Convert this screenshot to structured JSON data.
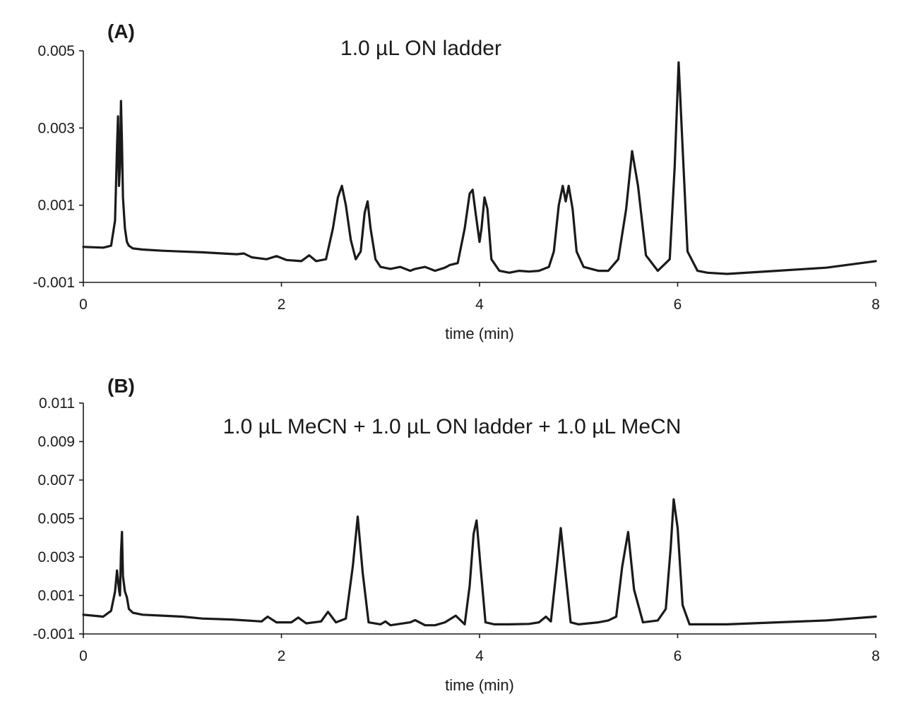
{
  "chart_data": [
    {
      "type": "line",
      "panel_label": "(A)",
      "title": "1.0 µL ON ladder",
      "xlabel": "time (min)",
      "ylabel": "",
      "xlim": [
        0,
        8
      ],
      "ylim": [
        -0.001,
        0.005
      ],
      "xticks": [
        0,
        2,
        4,
        6,
        8
      ],
      "yticks": [
        -0.001,
        0.001,
        0.003,
        0.005
      ],
      "xtick_labels": [
        "0",
        "2",
        "4",
        "6",
        "8"
      ],
      "ytick_labels": [
        "-0.001",
        "0.001",
        "0.003",
        "0.005"
      ],
      "grid": false,
      "legend": "none",
      "color": "#1a1a1a",
      "series": [
        {
          "x": [
            0,
            0.2,
            0.28,
            0.32,
            0.34,
            0.35,
            0.36,
            0.37,
            0.38,
            0.39,
            0.4,
            0.42,
            0.44,
            0.46,
            0.5,
            0.6,
            0.8,
            1.0,
            1.2,
            1.4,
            1.55,
            1.62,
            1.7,
            1.85,
            1.95,
            2.05,
            2.2,
            2.28,
            2.35,
            2.45,
            2.52,
            2.57,
            2.61,
            2.65,
            2.7,
            2.75,
            2.8,
            2.84,
            2.87,
            2.9,
            2.95,
            3.0,
            3.1,
            3.2,
            3.3,
            3.35,
            3.45,
            3.55,
            3.65,
            3.7,
            3.78,
            3.85,
            3.9,
            3.93,
            3.96,
            4.0,
            4.02,
            4.05,
            4.08,
            4.12,
            4.2,
            4.3,
            4.4,
            4.5,
            4.6,
            4.7,
            4.75,
            4.8,
            4.84,
            4.87,
            4.9,
            4.94,
            4.98,
            5.05,
            5.2,
            5.3,
            5.4,
            5.48,
            5.54,
            5.6,
            5.68,
            5.8,
            5.92,
            5.97,
            6.01,
            6.05,
            6.1,
            6.2,
            6.3,
            6.5,
            7.0,
            7.5,
            8.0
          ],
          "y": [
            -8e-05,
            -0.0001,
            -5e-05,
            0.0006,
            0.0025,
            0.0033,
            0.0015,
            0.002,
            0.0037,
            0.0026,
            0.0012,
            0.0004,
            5e-05,
            -5e-05,
            -0.00012,
            -0.00015,
            -0.00018,
            -0.0002,
            -0.00022,
            -0.00025,
            -0.00027,
            -0.00025,
            -0.00035,
            -0.0004,
            -0.00032,
            -0.00042,
            -0.00045,
            -0.0003,
            -0.00045,
            -0.0004,
            0.0004,
            0.0012,
            0.0015,
            0.001,
            0.0001,
            -0.0004,
            -0.0002,
            0.0008,
            0.0011,
            0.0004,
            -0.0004,
            -0.0006,
            -0.00065,
            -0.0006,
            -0.0007,
            -0.00065,
            -0.0006,
            -0.0007,
            -0.00062,
            -0.00055,
            -0.0005,
            0.0004,
            0.0013,
            0.0014,
            0.0008,
            5e-05,
            0.0004,
            0.0012,
            0.0009,
            -0.0004,
            -0.0007,
            -0.00075,
            -0.0007,
            -0.00072,
            -0.0007,
            -0.0006,
            -0.0002,
            0.001,
            0.0015,
            0.0011,
            0.0015,
            0.0009,
            -0.0002,
            -0.0006,
            -0.0007,
            -0.0007,
            -0.0004,
            0.0009,
            0.0024,
            0.0015,
            -0.0003,
            -0.0007,
            -0.0004,
            0.002,
            0.0047,
            0.0025,
            -0.0002,
            -0.0007,
            -0.00075,
            -0.00078,
            -0.0007,
            -0.00062,
            -0.00045
          ]
        }
      ]
    },
    {
      "type": "line",
      "panel_label": "(B)",
      "title": "1.0 µL MeCN + 1.0 µL ON ladder + 1.0 µL MeCN",
      "xlabel": "time (min)",
      "ylabel": "",
      "xlim": [
        0,
        8
      ],
      "ylim": [
        -0.001,
        0.011
      ],
      "xticks": [
        0,
        2,
        4,
        6,
        8
      ],
      "yticks": [
        -0.001,
        0.001,
        0.003,
        0.005,
        0.007,
        0.009,
        0.011
      ],
      "xtick_labels": [
        "0",
        "2",
        "4",
        "6",
        "8"
      ],
      "ytick_labels": [
        "-0.001",
        "0.001",
        "0.003",
        "0.005",
        "0.007",
        "0.009",
        "0.011"
      ],
      "grid": false,
      "legend": "none",
      "color": "#1a1a1a",
      "series": [
        {
          "x": [
            0,
            0.2,
            0.28,
            0.32,
            0.34,
            0.36,
            0.37,
            0.38,
            0.39,
            0.4,
            0.42,
            0.44,
            0.46,
            0.5,
            0.6,
            0.8,
            1.0,
            1.2,
            1.5,
            1.8,
            1.86,
            1.95,
            2.1,
            2.17,
            2.25,
            2.4,
            2.47,
            2.55,
            2.65,
            2.72,
            2.77,
            2.82,
            2.88,
            3.0,
            3.05,
            3.1,
            3.3,
            3.35,
            3.45,
            3.55,
            3.65,
            3.76,
            3.85,
            3.9,
            3.94,
            3.97,
            4.01,
            4.06,
            4.15,
            4.3,
            4.5,
            4.6,
            4.67,
            4.72,
            4.78,
            4.82,
            4.86,
            4.92,
            5.0,
            5.2,
            5.3,
            5.38,
            5.44,
            5.5,
            5.56,
            5.65,
            5.8,
            5.88,
            5.93,
            5.96,
            6.0,
            6.05,
            6.12,
            6.3,
            6.5,
            7.0,
            7.5,
            8.0
          ],
          "y": [
            0.0,
            -0.0001,
            0.0002,
            0.0012,
            0.0023,
            0.0013,
            0.001,
            0.0032,
            0.0043,
            0.002,
            0.0012,
            0.0009,
            0.0003,
            0.0001,
            0.0,
            -5e-05,
            -0.0001,
            -0.0002,
            -0.00025,
            -0.00035,
            -0.0001,
            -0.0004,
            -0.0004,
            -0.00015,
            -0.00045,
            -0.00035,
            0.00015,
            -0.0004,
            -0.0002,
            0.0025,
            0.0051,
            0.0022,
            -0.0004,
            -0.0005,
            -0.00035,
            -0.00055,
            -0.0004,
            -0.00028,
            -0.00055,
            -0.00055,
            -0.0004,
            -5e-05,
            -0.0005,
            0.0015,
            0.0042,
            0.0049,
            0.0025,
            -0.0004,
            -0.0005,
            -0.0005,
            -0.00048,
            -0.0004,
            -0.0001,
            -0.00035,
            0.0025,
            0.0045,
            0.0025,
            -0.0004,
            -0.0005,
            -0.0004,
            -0.0003,
            -0.0001,
            0.0025,
            0.0043,
            0.0013,
            -0.0004,
            -0.0003,
            0.0003,
            0.0035,
            0.006,
            0.0045,
            0.0005,
            -0.0005,
            -0.0005,
            -0.0005,
            -0.0004,
            -0.0003,
            -0.0001
          ]
        }
      ]
    }
  ]
}
